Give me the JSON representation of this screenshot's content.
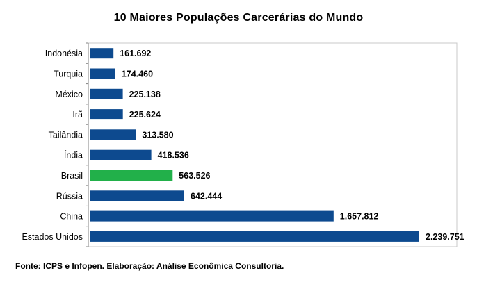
{
  "chart_data": {
    "type": "bar",
    "orientation": "horizontal",
    "title": "10 Maiores Populações Carcerárias do Mundo",
    "categories": [
      "Indonésia",
      "Turquia",
      "México",
      "Irã",
      "Tailândia",
      "Índia",
      "Brasil",
      "Rússia",
      "China",
      "Estados Unidos"
    ],
    "values": [
      161692,
      174460,
      225138,
      225624,
      313580,
      418536,
      563526,
      642444,
      1657812,
      2239751
    ],
    "value_labels": [
      "161.692",
      "174.460",
      "225.138",
      "225.624",
      "313.580",
      "418.536",
      "563.526",
      "642.444",
      "1.657.812",
      "2.239.751"
    ],
    "bar_colors": [
      "#0d4a8f",
      "#0d4a8f",
      "#0d4a8f",
      "#0d4a8f",
      "#0d4a8f",
      "#0d4a8f",
      "#22b04a",
      "#0d4a8f",
      "#0d4a8f",
      "#0d4a8f"
    ],
    "highlight_category": "Brasil",
    "xlim": [
      0,
      2239751
    ],
    "grid": false,
    "legend": "none"
  },
  "footer": {
    "source": "Fonte: ICPS e Infopen. Elaboração: Análise Econômica Consultoria."
  }
}
